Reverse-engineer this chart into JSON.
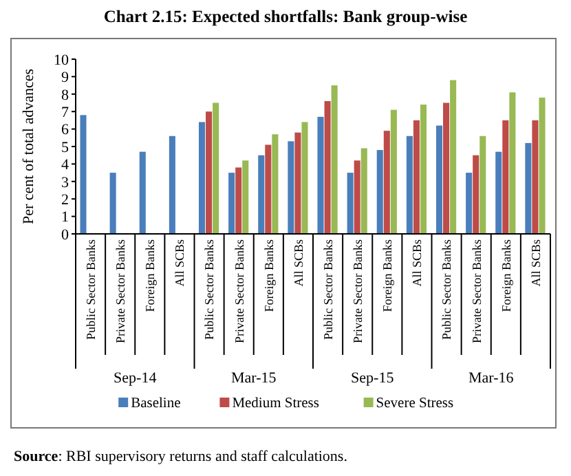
{
  "chart_data": {
    "type": "bar",
    "title": "Chart 2.15: Expected shortfalls: Bank group-wise",
    "ylabel": "Per cent of total advances",
    "categories": [
      "Public Sector Banks",
      "Private Sector Banks",
      "Foreign Banks",
      "All SCBs",
      "Public Sector Banks",
      "Private Sector Banks",
      "Foreign Banks",
      "All SCBs",
      "Public Sector Banks",
      "Private Sector Banks",
      "Foreign Banks",
      "All SCBs",
      "Public Sector Banks",
      "Private Sector Banks",
      "Foreign Banks",
      "All SCBs"
    ],
    "series": [
      {
        "name": "Baseline",
        "color": "#4a7ebb",
        "values": [
          6.8,
          3.5,
          4.7,
          5.6,
          6.4,
          3.5,
          4.5,
          5.3,
          6.7,
          3.5,
          4.8,
          5.6,
          6.2,
          3.5,
          4.7,
          5.2
        ]
      },
      {
        "name": "Medium Stress",
        "color": "#be4b48",
        "values": [
          null,
          null,
          null,
          null,
          7.0,
          3.8,
          5.1,
          5.8,
          7.6,
          4.2,
          5.9,
          6.5,
          7.5,
          4.5,
          6.5,
          6.5
        ]
      },
      {
        "name": "Severe Stress",
        "color": "#98b954",
        "values": [
          null,
          null,
          null,
          null,
          7.5,
          4.2,
          5.7,
          6.4,
          8.5,
          4.9,
          7.1,
          7.4,
          8.8,
          5.6,
          8.1,
          7.8
        ]
      }
    ],
    "ylim": [
      0,
      10
    ],
    "yticks": [
      0,
      1,
      2,
      3,
      4,
      5,
      6,
      7,
      8,
      9,
      10
    ],
    "grid": false,
    "legend": "bottom",
    "annotations": [
      "Sep-14",
      "Mar-15",
      "Sep-15",
      "Mar-16",
      "Source: RBI supervisory returns and staff calculations."
    ]
  }
}
